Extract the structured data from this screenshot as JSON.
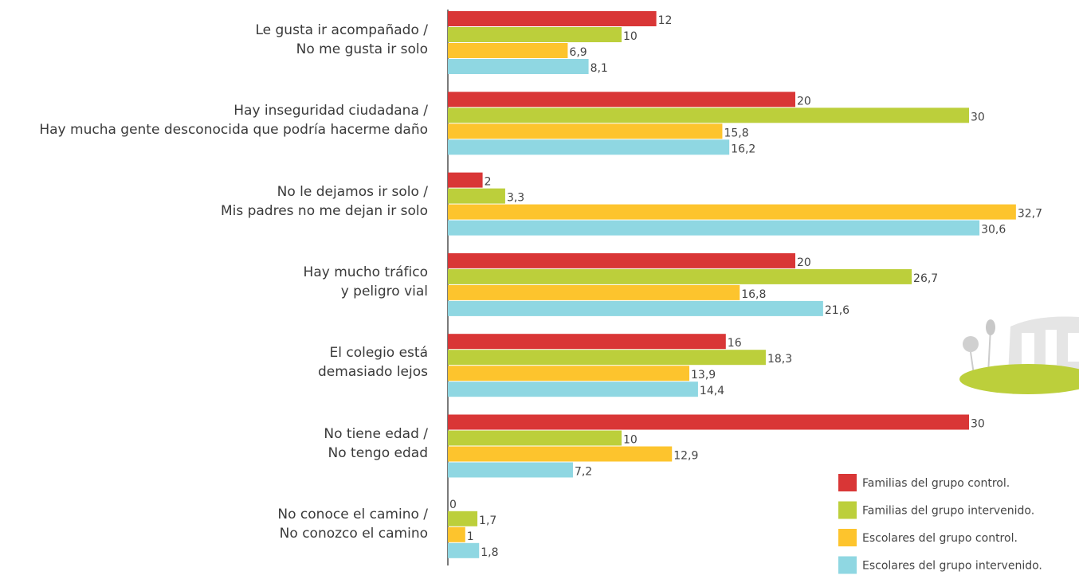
{
  "chart_data": {
    "type": "bar",
    "orientation": "horizontal",
    "categories": [
      "Le gusta ir acompañado /\nNo me gusta ir solo",
      "Hay inseguridad ciudadana /\nHay mucha gente desconocida que podría hacerme daño",
      "No le dejamos ir solo /\nMis padres no me dejan ir solo",
      "Hay mucho tráfico\ny peligro vial",
      "El colegio está\ndemasiado lejos",
      "No tiene edad /\nNo tengo edad",
      "No conoce el camino /\nNo conozco el camino"
    ],
    "series": [
      {
        "name": "Familias del grupo control.",
        "color": "#d93636",
        "values": [
          12,
          20,
          2,
          20,
          16,
          30,
          0
        ],
        "value_labels": [
          "12",
          "20",
          "2",
          "20",
          "16",
          "30",
          "0"
        ]
      },
      {
        "name": "Familias del grupo intervenido.",
        "color": "#bccf3b",
        "values": [
          10,
          30,
          3.3,
          26.7,
          18.3,
          10,
          1.7
        ],
        "value_labels": [
          "10",
          "30",
          "3,3",
          "26,7",
          "18,3",
          "10",
          "1,7"
        ]
      },
      {
        "name": "Escolares del grupo control.",
        "color": "#fdc42d",
        "values": [
          6.9,
          15.8,
          32.7,
          16.8,
          13.9,
          12.9,
          1
        ],
        "value_labels": [
          "6,9",
          "15,8",
          "32,7",
          "16,8",
          "13,9",
          "12,9",
          "1"
        ]
      },
      {
        "name": "Escolares del grupo intervenido.",
        "color": "#8fd7e2",
        "values": [
          8.1,
          16.2,
          30.6,
          21.6,
          14.4,
          7.2,
          1.8
        ],
        "value_labels": [
          "8,1",
          "16,2",
          "30,6",
          "21,6",
          "14,4",
          "7,2",
          "1,8"
        ]
      }
    ],
    "legend": "lower right"
  }
}
